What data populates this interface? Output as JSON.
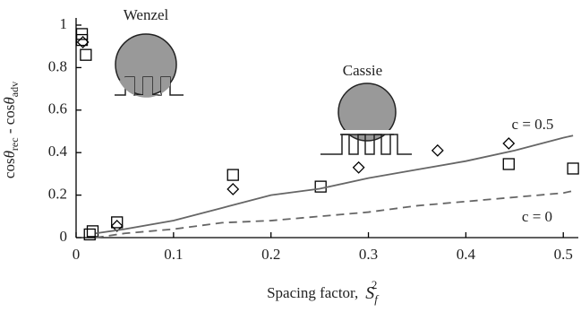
{
  "chart_data": {
    "type": "scatter",
    "ylabel": [
      "cos",
      "θ",
      "rec",
      " - cos",
      "θ",
      "adv"
    ],
    "xlabel": [
      "Spacing factor,",
      "S",
      "f",
      "2"
    ],
    "annotations": [
      "Wenzel",
      "Cassie"
    ],
    "xlim": [
      0,
      0.52
    ],
    "ylim": [
      0,
      1
    ],
    "xticks": [
      0,
      0.1,
      0.2,
      0.3,
      0.4,
      0.5
    ],
    "yticks": [
      0,
      0.2,
      0.4,
      0.6,
      0.8,
      1
    ],
    "series": [
      {
        "marker": "square",
        "color": "#000000",
        "x": [
          0.006,
          0.006,
          0.01,
          0.017,
          0.014,
          0.042,
          0.161,
          0.251,
          0.444,
          0.51
        ],
        "values": [
          0.958,
          0.93,
          0.86,
          0.03,
          0.015,
          0.072,
          0.295,
          0.24,
          0.346,
          0.325
        ]
      },
      {
        "marker": "diamond",
        "color": "#000000",
        "x": [
          0.007,
          0.042,
          0.161,
          0.29,
          0.371,
          0.444
        ],
        "values": [
          0.92,
          0.055,
          0.228,
          0.33,
          0.41,
          0.443
        ]
      },
      {
        "name": "c = 0.5",
        "line": "solid",
        "color": "#666666",
        "x": [
          0.02,
          0.05,
          0.1,
          0.15,
          0.2,
          0.25,
          0.3,
          0.35,
          0.4,
          0.45,
          0.5,
          0.51
        ],
        "values": [
          0.02,
          0.04,
          0.08,
          0.14,
          0.2,
          0.23,
          0.28,
          0.32,
          0.36,
          0.41,
          0.47,
          0.48
        ]
      },
      {
        "name": "c = 0",
        "line": "dashed",
        "color": "#666666",
        "x": [
          0.02,
          0.05,
          0.1,
          0.15,
          0.2,
          0.25,
          0.3,
          0.35,
          0.4,
          0.45,
          0.5,
          0.51
        ],
        "values": [
          0.0,
          0.02,
          0.04,
          0.07,
          0.08,
          0.1,
          0.12,
          0.15,
          0.17,
          0.19,
          0.21,
          0.22
        ]
      }
    ]
  }
}
